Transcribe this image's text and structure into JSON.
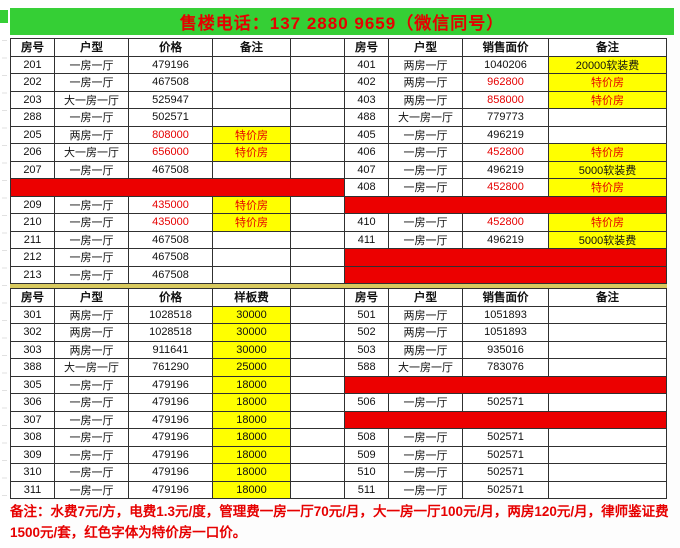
{
  "banner": {
    "text": "售楼电话：137 2880 9659（微信同号）"
  },
  "colors": {
    "banner_green": "#35cf35",
    "highlight_yellow": "#ffff00",
    "special_red": "#e60000",
    "sold_red": "#ec0000"
  },
  "upper_table": {
    "left_headers": [
      "房号",
      "户型",
      "价格",
      "备注"
    ],
    "right_headers": [
      "房号",
      "户型",
      "销售面价",
      "备注"
    ],
    "rows": [
      {
        "left": {
          "room": "201",
          "type": "一房一厅",
          "price": "479196",
          "price_red": false,
          "note": "",
          "note_style": ""
        },
        "right": {
          "room": "401",
          "type": "两房一厅",
          "price": "1040206",
          "price_red": false,
          "note": "20000软装费",
          "note_style": "fee"
        }
      },
      {
        "left": {
          "room": "202",
          "type": "一房一厅",
          "price": "467508",
          "price_red": false,
          "note": "",
          "note_style": ""
        },
        "right": {
          "room": "402",
          "type": "两房一厅",
          "price": "962800",
          "price_red": true,
          "note": "特价房",
          "note_style": "special"
        }
      },
      {
        "left": {
          "room": "203",
          "type": "大一房一厅",
          "price": "525947",
          "price_red": false,
          "note": "",
          "note_style": ""
        },
        "right": {
          "room": "403",
          "type": "两房一厅",
          "price": "858000",
          "price_red": true,
          "note": "特价房",
          "note_style": "special"
        }
      },
      {
        "left": {
          "room": "288",
          "type": "一房一厅",
          "price": "502571",
          "price_red": false,
          "note": "",
          "note_style": ""
        },
        "right": {
          "room": "488",
          "type": "大一房一厅",
          "price": "779773",
          "price_red": false,
          "note": "",
          "note_style": ""
        }
      },
      {
        "left": {
          "room": "205",
          "type": "两房一厅",
          "price": "808000",
          "price_red": true,
          "note": "特价房",
          "note_style": "special"
        },
        "right": {
          "room": "405",
          "type": "一房一厅",
          "price": "496219",
          "price_red": false,
          "note": "",
          "note_style": ""
        }
      },
      {
        "left": {
          "room": "206",
          "type": "大一房一厅",
          "price": "656000",
          "price_red": true,
          "note": "特价房",
          "note_style": "special"
        },
        "right": {
          "room": "406",
          "type": "一房一厅",
          "price": "452800",
          "price_red": true,
          "note": "特价房",
          "note_style": "special"
        }
      },
      {
        "left": {
          "room": "207",
          "type": "一房一厅",
          "price": "467508",
          "price_red": false,
          "note": "",
          "note_style": ""
        },
        "right": {
          "room": "407",
          "type": "一房一厅",
          "price": "496219",
          "price_red": false,
          "note": "5000软装费",
          "note_style": "fee"
        }
      },
      {
        "left": {
          "sold": true
        },
        "right": {
          "room": "408",
          "type": "一房一厅",
          "price": "452800",
          "price_red": true,
          "note": "特价房",
          "note_style": "special"
        }
      },
      {
        "left": {
          "room": "209",
          "type": "一房一厅",
          "price": "435000",
          "price_red": true,
          "note": "特价房",
          "note_style": "special"
        },
        "right": {
          "sold": true
        }
      },
      {
        "left": {
          "room": "210",
          "type": "一房一厅",
          "price": "435000",
          "price_red": true,
          "note": "特价房",
          "note_style": "special"
        },
        "right": {
          "room": "410",
          "type": "一房一厅",
          "price": "452800",
          "price_red": true,
          "note": "特价房",
          "note_style": "special"
        }
      },
      {
        "left": {
          "room": "211",
          "type": "一房一厅",
          "price": "467508",
          "price_red": false,
          "note": "",
          "note_style": ""
        },
        "right": {
          "room": "411",
          "type": "一房一厅",
          "price": "496219",
          "price_red": false,
          "note": "5000软装费",
          "note_style": "fee"
        }
      },
      {
        "left": {
          "room": "212",
          "type": "一房一厅",
          "price": "467508",
          "price_red": false,
          "note": "",
          "note_style": ""
        },
        "right": {
          "sold": true
        }
      },
      {
        "left": {
          "room": "213",
          "type": "一房一厅",
          "price": "467508",
          "price_red": false,
          "note": "",
          "note_style": ""
        },
        "right": {
          "sold": true
        }
      }
    ]
  },
  "lower_table": {
    "left_headers": [
      "房号",
      "户型",
      "价格",
      "样板费"
    ],
    "right_headers": [
      "房号",
      "户型",
      "销售面价",
      "备注"
    ],
    "rows": [
      {
        "left": {
          "room": "301",
          "type": "两房一厅",
          "price": "1028518",
          "price_red": false,
          "note": "30000",
          "note_style": "fee"
        },
        "right": {
          "room": "501",
          "type": "两房一厅",
          "price": "1051893",
          "price_red": false,
          "note": "",
          "note_style": ""
        }
      },
      {
        "left": {
          "room": "302",
          "type": "两房一厅",
          "price": "1028518",
          "price_red": false,
          "note": "30000",
          "note_style": "fee"
        },
        "right": {
          "room": "502",
          "type": "两房一厅",
          "price": "1051893",
          "price_red": false,
          "note": "",
          "note_style": ""
        }
      },
      {
        "left": {
          "room": "303",
          "type": "两房一厅",
          "price": "911641",
          "price_red": false,
          "note": "30000",
          "note_style": "fee"
        },
        "right": {
          "room": "503",
          "type": "两房一厅",
          "price": "935016",
          "price_red": false,
          "note": "",
          "note_style": ""
        }
      },
      {
        "left": {
          "room": "388",
          "type": "大一房一厅",
          "price": "761290",
          "price_red": false,
          "note": "25000",
          "note_style": "fee"
        },
        "right": {
          "room": "588",
          "type": "大一房一厅",
          "price": "783076",
          "price_red": false,
          "note": "",
          "note_style": ""
        }
      },
      {
        "left": {
          "room": "305",
          "type": "一房一厅",
          "price": "479196",
          "price_red": false,
          "note": "18000",
          "note_style": "fee"
        },
        "right": {
          "sold": true
        }
      },
      {
        "left": {
          "room": "306",
          "type": "一房一厅",
          "price": "479196",
          "price_red": false,
          "note": "18000",
          "note_style": "fee"
        },
        "right": {
          "room": "506",
          "type": "一房一厅",
          "price": "502571",
          "price_red": false,
          "note": "",
          "note_style": ""
        }
      },
      {
        "left": {
          "room": "307",
          "type": "一房一厅",
          "price": "479196",
          "price_red": false,
          "note": "18000",
          "note_style": "fee"
        },
        "right": {
          "sold": true
        }
      },
      {
        "left": {
          "room": "308",
          "type": "一房一厅",
          "price": "479196",
          "price_red": false,
          "note": "18000",
          "note_style": "fee"
        },
        "right": {
          "room": "508",
          "type": "一房一厅",
          "price": "502571",
          "price_red": false,
          "note": "",
          "note_style": ""
        }
      },
      {
        "left": {
          "room": "309",
          "type": "一房一厅",
          "price": "479196",
          "price_red": false,
          "note": "18000",
          "note_style": "fee"
        },
        "right": {
          "room": "509",
          "type": "一房一厅",
          "price": "502571",
          "price_red": false,
          "note": "",
          "note_style": ""
        }
      },
      {
        "left": {
          "room": "310",
          "type": "一房一厅",
          "price": "479196",
          "price_red": false,
          "note": "18000",
          "note_style": "fee"
        },
        "right": {
          "room": "510",
          "type": "一房一厅",
          "price": "502571",
          "price_red": false,
          "note": "",
          "note_style": ""
        }
      },
      {
        "left": {
          "room": "311",
          "type": "一房一厅",
          "price": "479196",
          "price_red": false,
          "note": "18000",
          "note_style": "fee"
        },
        "right": {
          "room": "511",
          "type": "一房一厅",
          "price": "502571",
          "price_red": false,
          "note": "",
          "note_style": ""
        }
      }
    ]
  },
  "footer_note": "备注：水费7元/方，电费1.3元/度，管理费一房一厅70元/月，大一房一厅100元/月，两房120元/月，律师鉴证费1500元/套，红色字体为特价房一口价。"
}
